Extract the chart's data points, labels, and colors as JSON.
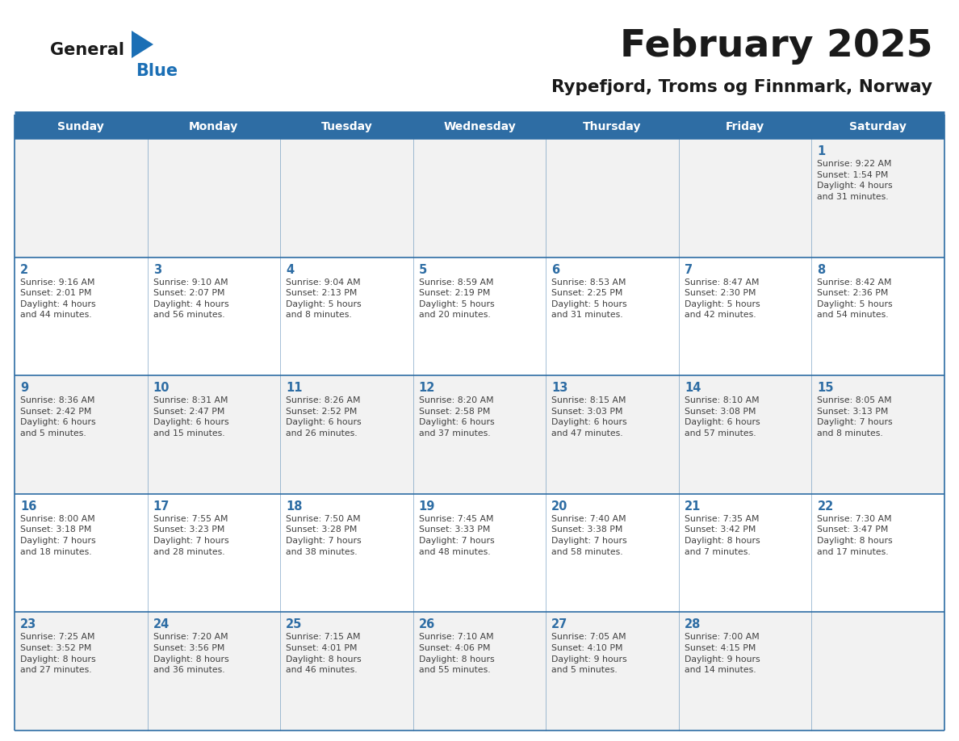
{
  "title": "February 2025",
  "subtitle": "Rypefjord, Troms og Finnmark, Norway",
  "header_bg": "#2E6DA4",
  "header_text_color": "#FFFFFF",
  "cell_bg_row0": "#F2F2F2",
  "cell_bg_row1": "#FFFFFF",
  "cell_bg_row2": "#F2F2F2",
  "cell_bg_row3": "#FFFFFF",
  "cell_bg_row4": "#F2F2F2",
  "day_number_color": "#2E6DA4",
  "day_text_color": "#404040",
  "line_color": "#2E6DA4",
  "days_of_week": [
    "Sunday",
    "Monday",
    "Tuesday",
    "Wednesday",
    "Thursday",
    "Friday",
    "Saturday"
  ],
  "logo_general_color": "#1A1A1A",
  "logo_blue_color": "#1B6FB5",
  "calendar_data": [
    [
      {
        "day": null,
        "info": null
      },
      {
        "day": null,
        "info": null
      },
      {
        "day": null,
        "info": null
      },
      {
        "day": null,
        "info": null
      },
      {
        "day": null,
        "info": null
      },
      {
        "day": null,
        "info": null
      },
      {
        "day": 1,
        "info": "Sunrise: 9:22 AM\nSunset: 1:54 PM\nDaylight: 4 hours\nand 31 minutes."
      }
    ],
    [
      {
        "day": 2,
        "info": "Sunrise: 9:16 AM\nSunset: 2:01 PM\nDaylight: 4 hours\nand 44 minutes."
      },
      {
        "day": 3,
        "info": "Sunrise: 9:10 AM\nSunset: 2:07 PM\nDaylight: 4 hours\nand 56 minutes."
      },
      {
        "day": 4,
        "info": "Sunrise: 9:04 AM\nSunset: 2:13 PM\nDaylight: 5 hours\nand 8 minutes."
      },
      {
        "day": 5,
        "info": "Sunrise: 8:59 AM\nSunset: 2:19 PM\nDaylight: 5 hours\nand 20 minutes."
      },
      {
        "day": 6,
        "info": "Sunrise: 8:53 AM\nSunset: 2:25 PM\nDaylight: 5 hours\nand 31 minutes."
      },
      {
        "day": 7,
        "info": "Sunrise: 8:47 AM\nSunset: 2:30 PM\nDaylight: 5 hours\nand 42 minutes."
      },
      {
        "day": 8,
        "info": "Sunrise: 8:42 AM\nSunset: 2:36 PM\nDaylight: 5 hours\nand 54 minutes."
      }
    ],
    [
      {
        "day": 9,
        "info": "Sunrise: 8:36 AM\nSunset: 2:42 PM\nDaylight: 6 hours\nand 5 minutes."
      },
      {
        "day": 10,
        "info": "Sunrise: 8:31 AM\nSunset: 2:47 PM\nDaylight: 6 hours\nand 15 minutes."
      },
      {
        "day": 11,
        "info": "Sunrise: 8:26 AM\nSunset: 2:52 PM\nDaylight: 6 hours\nand 26 minutes."
      },
      {
        "day": 12,
        "info": "Sunrise: 8:20 AM\nSunset: 2:58 PM\nDaylight: 6 hours\nand 37 minutes."
      },
      {
        "day": 13,
        "info": "Sunrise: 8:15 AM\nSunset: 3:03 PM\nDaylight: 6 hours\nand 47 minutes."
      },
      {
        "day": 14,
        "info": "Sunrise: 8:10 AM\nSunset: 3:08 PM\nDaylight: 6 hours\nand 57 minutes."
      },
      {
        "day": 15,
        "info": "Sunrise: 8:05 AM\nSunset: 3:13 PM\nDaylight: 7 hours\nand 8 minutes."
      }
    ],
    [
      {
        "day": 16,
        "info": "Sunrise: 8:00 AM\nSunset: 3:18 PM\nDaylight: 7 hours\nand 18 minutes."
      },
      {
        "day": 17,
        "info": "Sunrise: 7:55 AM\nSunset: 3:23 PM\nDaylight: 7 hours\nand 28 minutes."
      },
      {
        "day": 18,
        "info": "Sunrise: 7:50 AM\nSunset: 3:28 PM\nDaylight: 7 hours\nand 38 minutes."
      },
      {
        "day": 19,
        "info": "Sunrise: 7:45 AM\nSunset: 3:33 PM\nDaylight: 7 hours\nand 48 minutes."
      },
      {
        "day": 20,
        "info": "Sunrise: 7:40 AM\nSunset: 3:38 PM\nDaylight: 7 hours\nand 58 minutes."
      },
      {
        "day": 21,
        "info": "Sunrise: 7:35 AM\nSunset: 3:42 PM\nDaylight: 8 hours\nand 7 minutes."
      },
      {
        "day": 22,
        "info": "Sunrise: 7:30 AM\nSunset: 3:47 PM\nDaylight: 8 hours\nand 17 minutes."
      }
    ],
    [
      {
        "day": 23,
        "info": "Sunrise: 7:25 AM\nSunset: 3:52 PM\nDaylight: 8 hours\nand 27 minutes."
      },
      {
        "day": 24,
        "info": "Sunrise: 7:20 AM\nSunset: 3:56 PM\nDaylight: 8 hours\nand 36 minutes."
      },
      {
        "day": 25,
        "info": "Sunrise: 7:15 AM\nSunset: 4:01 PM\nDaylight: 8 hours\nand 46 minutes."
      },
      {
        "day": 26,
        "info": "Sunrise: 7:10 AM\nSunset: 4:06 PM\nDaylight: 8 hours\nand 55 minutes."
      },
      {
        "day": 27,
        "info": "Sunrise: 7:05 AM\nSunset: 4:10 PM\nDaylight: 9 hours\nand 5 minutes."
      },
      {
        "day": 28,
        "info": "Sunrise: 7:00 AM\nSunset: 4:15 PM\nDaylight: 9 hours\nand 14 minutes."
      },
      {
        "day": null,
        "info": null
      }
    ]
  ],
  "cell_bgs": [
    "#F2F2F2",
    "#FFFFFF",
    "#F2F2F2",
    "#FFFFFF",
    "#F2F2F2"
  ]
}
